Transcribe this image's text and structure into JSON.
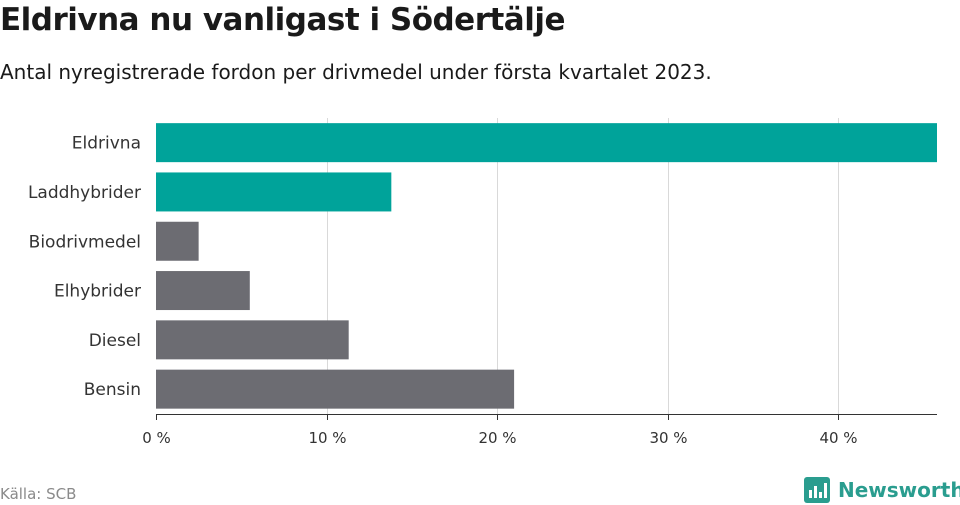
{
  "title": "Eldrivna nu vanligast i Södertälje",
  "subtitle": "Antal nyregistrerade fordon per drivmedel under första kvartalet 2023.",
  "source": "Källa: SCB",
  "brand": {
    "name": "Newsworthy",
    "logo_icon": "newsworthy-chart-logo-icon"
  },
  "colors": {
    "highlight": "#00a39a",
    "default": "#6c6c72",
    "grid": "#d9d9d9",
    "axis": "#333333",
    "brand": "#2a9d8f"
  },
  "chart_data": {
    "type": "bar",
    "orientation": "horizontal",
    "title": "Eldrivna nu vanligast i Södertälje",
    "subtitle": "Antal nyregistrerade fordon per drivmedel under första kvartalet 2023.",
    "categories": [
      "Eldrivna",
      "Laddhybrider",
      "Biodrivmedel",
      "Elhybrider",
      "Diesel",
      "Bensin"
    ],
    "values": [
      45.8,
      13.8,
      2.5,
      5.5,
      11.3,
      21.0
    ],
    "highlight": [
      true,
      true,
      false,
      false,
      false,
      false
    ],
    "xlabel": "",
    "ylabel": "",
    "xlim": [
      0,
      45.8
    ],
    "xticks": [
      0,
      10,
      20,
      30,
      40
    ],
    "tick_labels": [
      "0 %",
      "10 %",
      "20 %",
      "30 %",
      "40 %"
    ],
    "grid": true,
    "unit": "%"
  }
}
